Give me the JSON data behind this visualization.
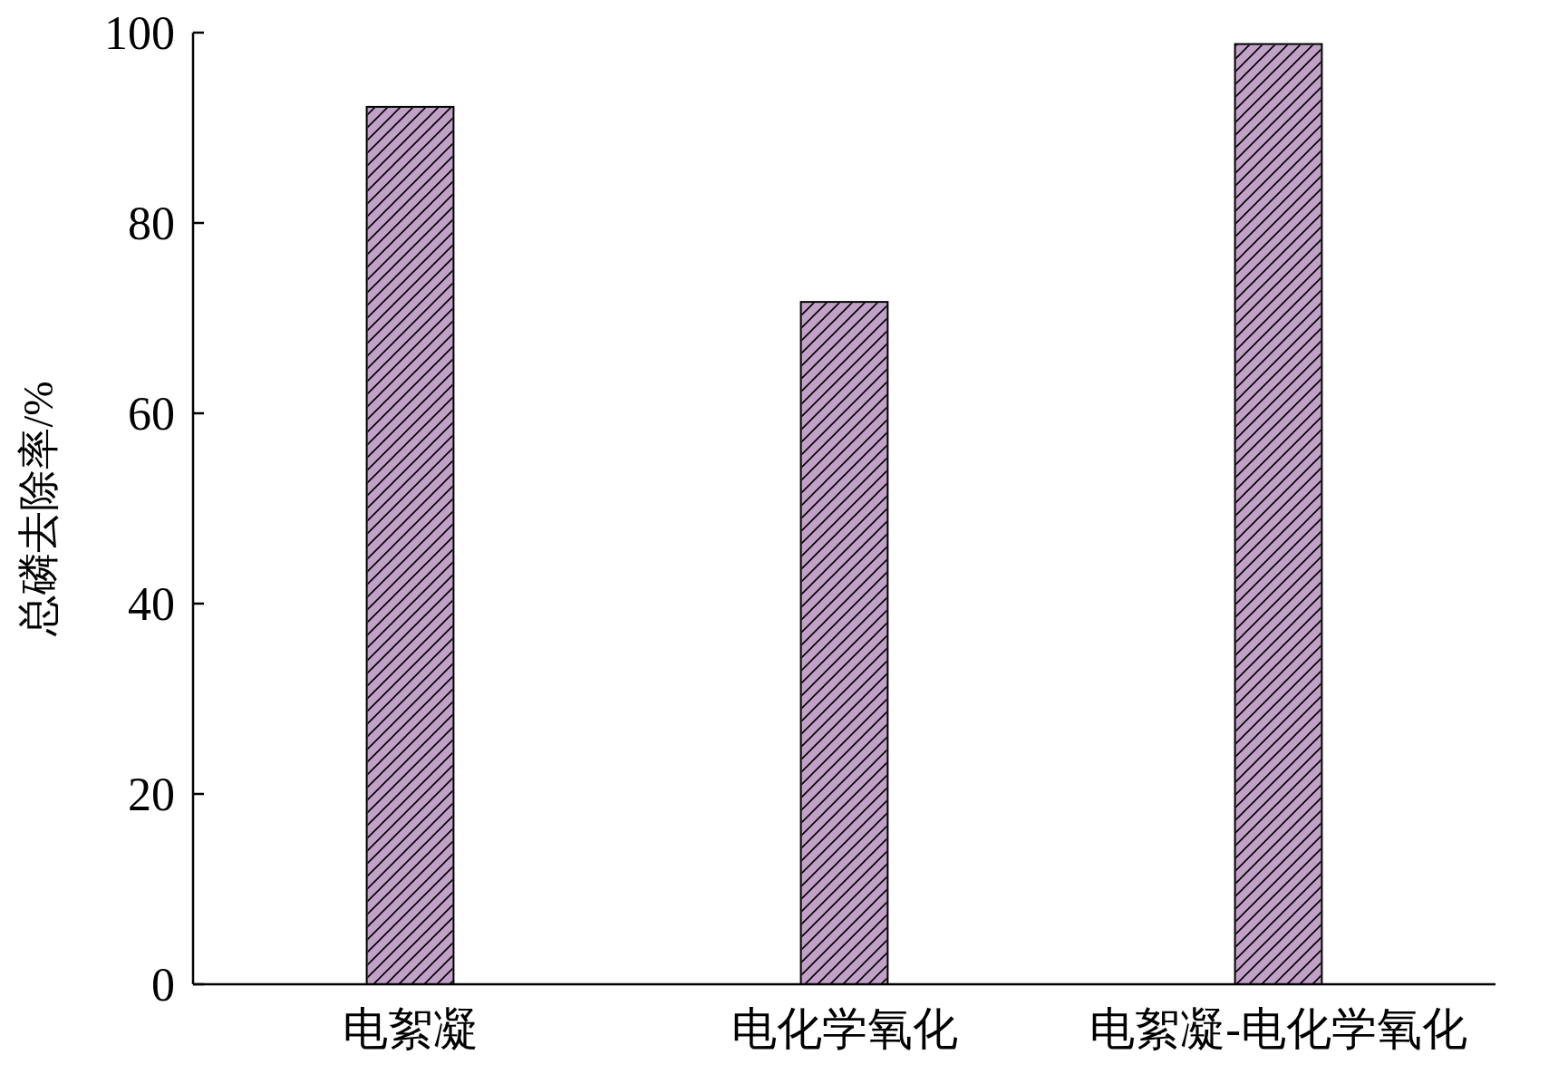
{
  "chart_data": {
    "type": "bar",
    "ylabel": "总磷去除率/%",
    "categories": [
      "电絮凝",
      "电化学氧化",
      "电絮凝-电化学氧化"
    ],
    "values": [
      92.2,
      71.7,
      98.8
    ],
    "color": "#c1a1c7",
    "ylim": [
      0,
      100
    ],
    "yticks": [
      0,
      20,
      40,
      60,
      80,
      100
    ]
  }
}
